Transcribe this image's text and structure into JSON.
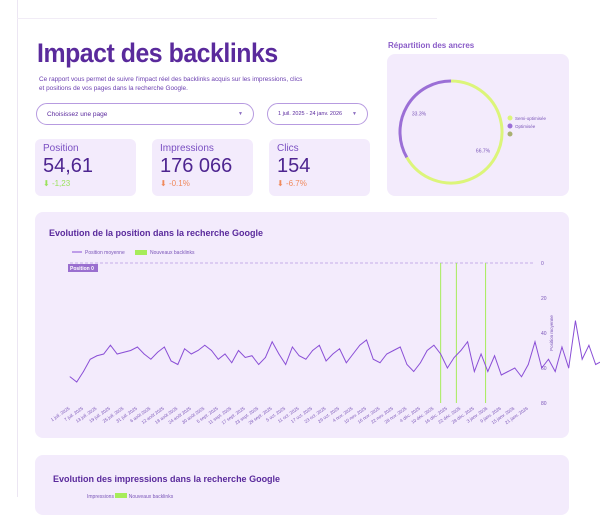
{
  "header": {
    "title": "Impact des backlinks",
    "description": "Ce rapport vous permet de suivre l'impact réel des backlinks acquis sur les impressions, clics et positions de vos pages dans la recherche Google."
  },
  "filters": {
    "page_select": "Choisissez une page",
    "date_range": "1 juil. 2025 - 24 janv. 2026"
  },
  "kpis": [
    {
      "label": "Position",
      "value": "54,61",
      "delta": "-1,23",
      "delta_color": "#9be25c",
      "arrow": "arrow-down-icon"
    },
    {
      "label": "Impressions",
      "value": "176 066",
      "delta": "-0.1%",
      "delta_color": "#f08a5d",
      "arrow": "arrow-down-icon"
    },
    {
      "label": "Clics",
      "value": "154",
      "delta": "-6.7%",
      "delta_color": "#f08a5d",
      "arrow": "arrow-down-icon"
    }
  ],
  "colors": {
    "accent": "#5a2a9c",
    "line": "#8a4fd6",
    "backlink": "#a6ec5a",
    "card": "#f3ebfc"
  },
  "chart_data": [
    {
      "type": "pie",
      "title": "Répartition des ancres",
      "donut": true,
      "slices": [
        {
          "name": "Semi-optimisée",
          "value": 66.7,
          "label": "66.7%",
          "color": "#dcf57a"
        },
        {
          "name": "Optimisée",
          "value": 33.3,
          "label": "33.3%",
          "color": "#9b6fd6"
        },
        {
          "name": "",
          "value": 0,
          "color": "#a9b070"
        }
      ],
      "legend": "right"
    },
    {
      "type": "line",
      "title": "Evolution de la position dans la recherche Google",
      "legend": [
        "Position moyenne",
        "Nouveaux backlinks"
      ],
      "ylabel": "Position moyenne",
      "ylim": [
        0,
        80
      ],
      "y_reversed": true,
      "yticks": [
        "0",
        "20",
        "40",
        "60",
        "80"
      ],
      "reference_line": {
        "value": 0,
        "label": "Position 0"
      },
      "xlim": [
        "2025-07-01",
        "2026-01-24"
      ],
      "xticks": [
        "1 juil. 2025",
        "7 juil. 2025",
        "13 juil. 2025",
        "19 juil. 2025",
        "25 juil. 2025",
        "31 juil. 2025",
        "6 août 2025",
        "12 août 2025",
        "18 août 2025",
        "24 août 2025",
        "30 août 2025",
        "5 sept. 2025",
        "11 sept. 2025",
        "17 sept. 2025",
        "23 sept. 2025",
        "29 sept. 2025",
        "5 oct. 2025",
        "11 oct. 2025",
        "17 oct. 2025",
        "23 oct. 2025",
        "29 oct. 2025",
        "4 nov. 2025",
        "10 nov. 2025",
        "16 nov. 2025",
        "22 nov. 2025",
        "28 nov. 2025",
        "4 déc. 2025",
        "10 déc. 2025",
        "16 déc. 2025",
        "22 déc. 2025",
        "28 déc. 2025",
        "3 janv. 2026",
        "9 janv. 2026",
        "15 janv. 2026",
        "21 janv. 2026"
      ],
      "x_step_days": 3,
      "series": [
        {
          "name": "Position moyenne",
          "values": [
            65,
            68,
            62,
            55,
            53,
            52,
            47,
            52,
            51,
            50,
            48,
            52,
            55,
            51,
            48,
            56,
            58,
            49,
            52,
            50,
            47,
            50,
            55,
            52,
            57,
            50,
            54,
            53,
            58,
            54,
            45,
            52,
            58,
            48,
            53,
            55,
            50,
            47,
            56,
            52,
            49,
            57,
            52,
            47,
            44,
            55,
            57,
            52,
            50,
            48,
            58,
            62,
            57,
            50,
            47,
            52,
            60,
            54,
            50,
            45,
            62,
            52,
            62,
            53,
            64,
            62,
            60,
            65,
            58,
            45,
            60,
            55,
            62,
            48,
            60,
            33,
            55,
            47,
            58,
            56
          ]
        }
      ],
      "backlinks": [
        "2025-12-13",
        "2025-12-20",
        "2026-01-02"
      ]
    },
    {
      "type": "line",
      "title": "Evolution des impressions dans la recherche Google",
      "legend": [
        "Impressions",
        "Nouveaux backlinks"
      ]
    }
  ]
}
